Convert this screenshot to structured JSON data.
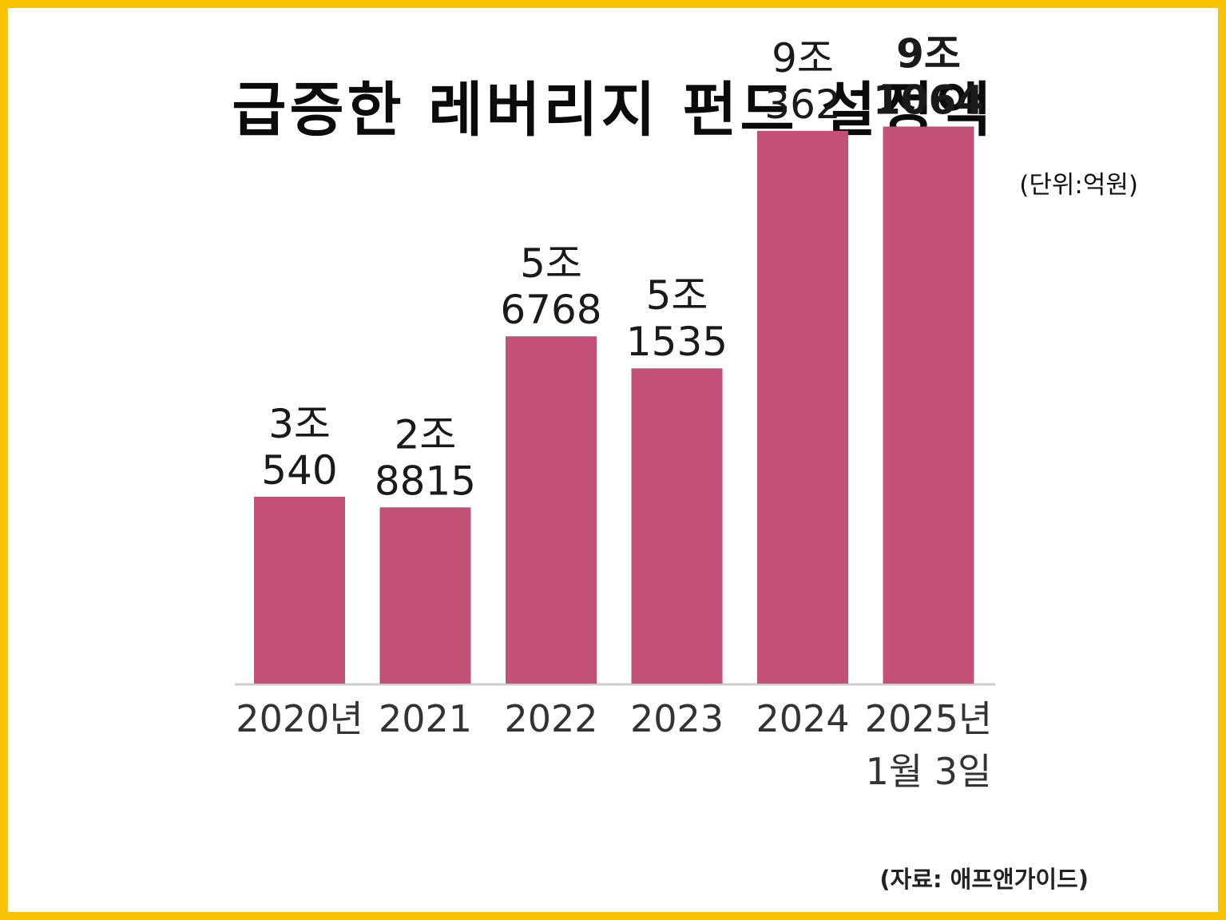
{
  "title": "급증한 레버리지 펀드 설정액",
  "unit": "(단위:억원)",
  "source": "(자료: 애프앤가이드)",
  "colors": {
    "frame": "#F9C300",
    "bar": "#C25077",
    "axis": "#cccccc"
  },
  "chart_data": {
    "type": "bar",
    "categories": [
      "2020년",
      "2021",
      "2022",
      "2023",
      "2024",
      "2025년 1월 3일"
    ],
    "category_lines": [
      [
        "2020년"
      ],
      [
        "2021"
      ],
      [
        "2022"
      ],
      [
        "2023"
      ],
      [
        "2024"
      ],
      [
        "2025년",
        "1월 3일"
      ]
    ],
    "values": [
      30540,
      28815,
      56768,
      51535,
      90362,
      91064
    ],
    "value_labels": [
      [
        "3조",
        "540"
      ],
      [
        "2조",
        "8815"
      ],
      [
        "5조",
        "6768"
      ],
      [
        "5조",
        "1535"
      ],
      [
        "9조",
        "362"
      ],
      [
        "9조",
        "1064"
      ]
    ],
    "ylim": [
      0,
      100000
    ],
    "grid": false,
    "xlabel": "",
    "ylabel": ""
  }
}
